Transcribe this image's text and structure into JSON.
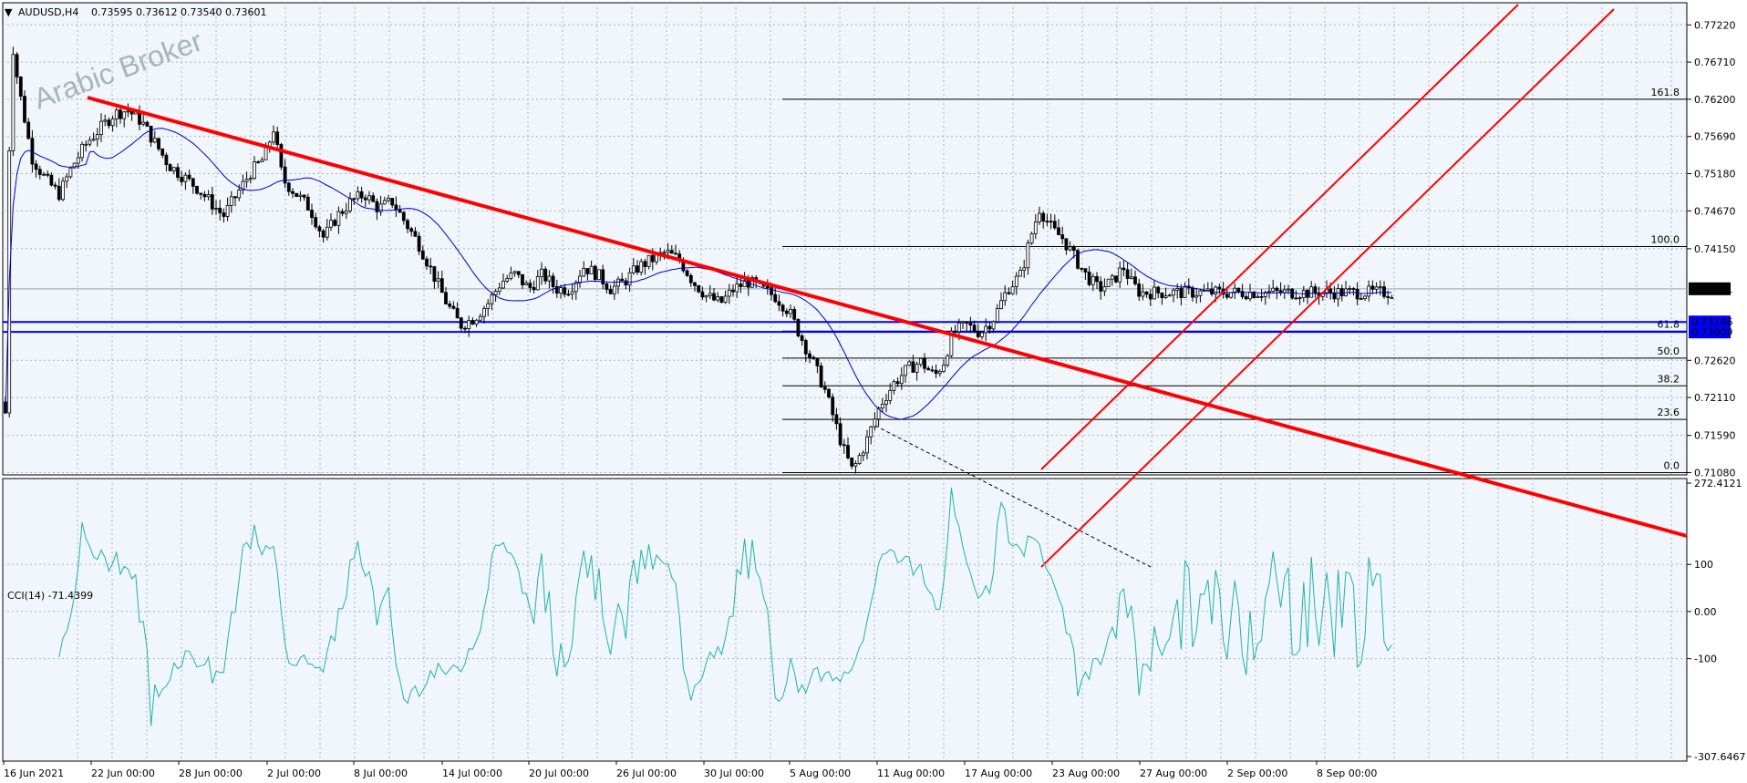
{
  "header": {
    "symbol": "AUDUSD,H4",
    "ohlc": "0.73595 0.73612 0.73540 0.73601",
    "cci_label": "CCI(14) -71.4399"
  },
  "watermark": "Arabic Broker",
  "colors": {
    "background": "#ffffff",
    "plot_bg": "#f0f6fb",
    "trendline": "#ff0000",
    "support": "#0000ff",
    "ma": "#0000c8",
    "cci": "#20b2aa",
    "candle": "#000000",
    "price_tag_bg": "#000000",
    "support_tag_bg": "#0000ff"
  },
  "chart_data": {
    "type": "candlestick",
    "symbol": "AUDUSD",
    "timeframe": "H4",
    "y_ticks": [
      "0.77220",
      "0.76710",
      "0.76200",
      "0.75690",
      "0.75180",
      "0.74670",
      "0.74150",
      "0.73601",
      "0.73146",
      "0.73009",
      "0.72620",
      "0.72110",
      "0.71590",
      "0.71080"
    ],
    "ylim": [
      0.71,
      0.773
    ],
    "current_price": "0.73601",
    "support_levels": [
      "0.73146",
      "0.73009"
    ],
    "x_ticks": [
      "16 Jun 2021",
      "22 Jun 00:00",
      "28 Jun 00:00",
      "2 Jul 00:00",
      "8 Jul 00:00",
      "14 Jul 00:00",
      "20 Jul 00:00",
      "26 Jul 00:00",
      "30 Jul 00:00",
      "5 Aug 00:00",
      "11 Aug 00:00",
      "17 Aug 00:00",
      "23 Aug 00:00",
      "27 Aug 00:00",
      "2 Sep 00:00",
      "8 Sep 00:00"
    ],
    "fibonacci_levels": [
      {
        "label": "161.8",
        "price": 0.762
      },
      {
        "label": "100.0",
        "price": 0.7418
      },
      {
        "label": "61.8",
        "price": 0.7302
      },
      {
        "label": "50.0",
        "price": 0.7265
      },
      {
        "label": "38.2",
        "price": 0.7227
      },
      {
        "label": "23.6",
        "price": 0.7181
      },
      {
        "label": "0.0",
        "price": 0.7108
      }
    ],
    "price_path": [
      [
        0.7205,
        0
      ],
      [
        0.719,
        6
      ],
      [
        0.771,
        12
      ],
      [
        0.764,
        20
      ],
      [
        0.754,
        35
      ],
      [
        0.751,
        50
      ],
      [
        0.749,
        65
      ],
      [
        0.753,
        80
      ],
      [
        0.756,
        95
      ],
      [
        0.758,
        110
      ],
      [
        0.76,
        125
      ],
      [
        0.7605,
        140
      ],
      [
        0.759,
        155
      ],
      [
        0.756,
        170
      ],
      [
        0.753,
        185
      ],
      [
        0.7515,
        200
      ],
      [
        0.75,
        215
      ],
      [
        0.748,
        230
      ],
      [
        0.746,
        245
      ],
      [
        0.749,
        260
      ],
      [
        0.752,
        275
      ],
      [
        0.754,
        290
      ],
      [
        0.758,
        300
      ],
      [
        0.751,
        310
      ],
      [
        0.749,
        325
      ],
      [
        0.747,
        340
      ],
      [
        0.743,
        355
      ],
      [
        0.746,
        370
      ],
      [
        0.748,
        385
      ],
      [
        0.749,
        400
      ],
      [
        0.747,
        415
      ],
      [
        0.748,
        430
      ],
      [
        0.745,
        445
      ],
      [
        0.742,
        460
      ],
      [
        0.738,
        475
      ],
      [
        0.734,
        490
      ],
      [
        0.731,
        505
      ],
      [
        0.732,
        520
      ],
      [
        0.734,
        535
      ],
      [
        0.737,
        550
      ],
      [
        0.738,
        565
      ],
      [
        0.736,
        580
      ],
      [
        0.738,
        595
      ],
      [
        0.736,
        610
      ],
      [
        0.736,
        625
      ],
      [
        0.739,
        640
      ],
      [
        0.738,
        655
      ],
      [
        0.736,
        670
      ],
      [
        0.737,
        685
      ],
      [
        0.739,
        700
      ],
      [
        0.74,
        715
      ],
      [
        0.741,
        730
      ],
      [
        0.74,
        745
      ],
      [
        0.737,
        760
      ],
      [
        0.735,
        775
      ],
      [
        0.734,
        790
      ],
      [
        0.736,
        805
      ],
      [
        0.737,
        820
      ],
      [
        0.736,
        835
      ],
      [
        0.735,
        850
      ],
      [
        0.733,
        865
      ],
      [
        0.729,
        880
      ],
      [
        0.725,
        895
      ],
      [
        0.722,
        905
      ],
      [
        0.718,
        915
      ],
      [
        0.714,
        925
      ],
      [
        0.711,
        935
      ],
      [
        0.715,
        950
      ],
      [
        0.72,
        965
      ],
      [
        0.723,
        980
      ],
      [
        0.725,
        995
      ],
      [
        0.726,
        1010
      ],
      [
        0.724,
        1025
      ],
      [
        0.726,
        1035
      ],
      [
        0.73,
        1045
      ],
      [
        0.731,
        1060
      ],
      [
        0.73,
        1075
      ],
      [
        0.732,
        1090
      ],
      [
        0.736,
        1105
      ],
      [
        0.738,
        1120
      ],
      [
        0.743,
        1130
      ],
      [
        0.747,
        1140
      ],
      [
        0.744,
        1155
      ],
      [
        0.743,
        1165
      ],
      [
        0.741,
        1175
      ],
      [
        0.738,
        1190
      ],
      [
        0.736,
        1205
      ],
      [
        0.737,
        1220
      ],
      [
        0.739,
        1232
      ],
      [
        0.737,
        1240
      ],
      [
        0.7355,
        1250
      ]
    ],
    "cci": {
      "ylim": [
        -307.6467,
        272.4121
      ],
      "y_ticks": [
        "272.4121",
        "100",
        "0.00",
        "-100",
        "-307.6467"
      ],
      "current": -71.4399
    }
  }
}
